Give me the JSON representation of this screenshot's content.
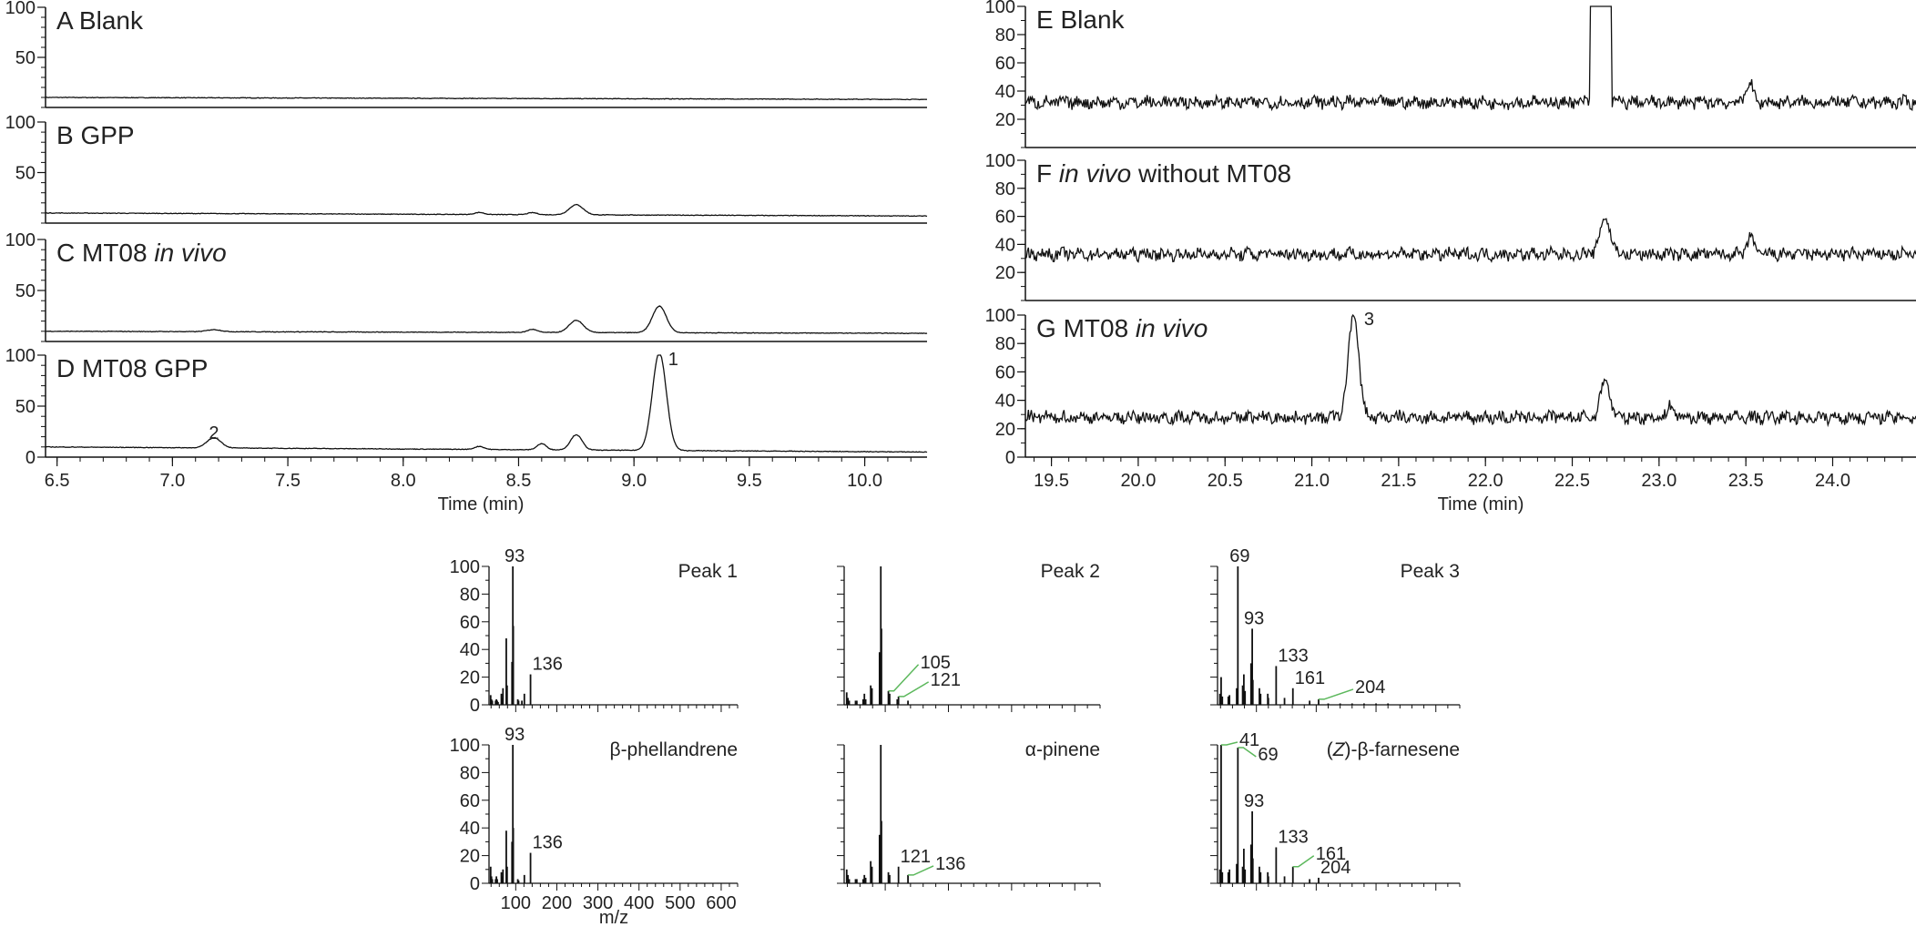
{
  "figure": {
    "gc_left_xlabel": "Time (min)",
    "gc_right_xlabel": "Time (min)",
    "ms_xlabel": "m/z"
  },
  "chart_data": [
    {
      "id": "A",
      "type": "line",
      "title_letter": "A",
      "title_text": "Blank",
      "title_italic": "",
      "xlim": [
        6.45,
        10.27
      ],
      "ylim": [
        0,
        100
      ],
      "yticks": [
        50,
        100
      ],
      "xticks": [],
      "xlabel": "",
      "baseline_start": 10,
      "baseline_end": 8,
      "peaks": []
    },
    {
      "id": "B",
      "type": "line",
      "title_letter": "B",
      "title_text": "GPP",
      "title_italic": "",
      "xlim": [
        6.45,
        10.27
      ],
      "ylim": [
        0,
        100
      ],
      "yticks": [
        50,
        100
      ],
      "xticks": [],
      "xlabel": "",
      "baseline_start": 10,
      "baseline_end": 7,
      "peaks": [
        [
          8.33,
          2,
          0.02
        ],
        [
          8.56,
          2,
          0.02
        ],
        [
          8.75,
          10,
          0.03
        ]
      ]
    },
    {
      "id": "C",
      "type": "line",
      "title_letter": "C",
      "title_text": "MT08",
      "title_italic": "in vivo",
      "xlim": [
        6.45,
        10.27
      ],
      "ylim": [
        0,
        100
      ],
      "yticks": [
        50,
        100
      ],
      "xticks": [],
      "xlabel": "",
      "baseline_start": 10,
      "baseline_end": 8,
      "peaks": [
        [
          7.18,
          2,
          0.03
        ],
        [
          8.56,
          3,
          0.02
        ],
        [
          8.75,
          12,
          0.03
        ],
        [
          9.11,
          26,
          0.03
        ]
      ]
    },
    {
      "id": "D",
      "type": "line",
      "title_letter": "D",
      "title_text": "MT08 GPP",
      "title_italic": "",
      "xlim": [
        6.45,
        10.27
      ],
      "ylim": [
        0,
        100
      ],
      "yticks": [
        0,
        50,
        100
      ],
      "xticks": [
        "6.5",
        "7.0",
        "7.5",
        "8.0",
        "8.5",
        "9.0",
        "9.5",
        "10.0"
      ],
      "xlabel": "Time (min)",
      "baseline_start": 10,
      "baseline_end": 5,
      "peaks": [
        [
          7.18,
          10,
          0.03
        ],
        [
          8.33,
          3,
          0.02
        ],
        [
          8.6,
          6,
          0.02
        ],
        [
          8.75,
          15,
          0.025
        ],
        [
          9.11,
          96,
          0.03
        ]
      ],
      "peak_labels": [
        {
          "text": "2",
          "x": 7.18,
          "y": 18
        },
        {
          "text": "1",
          "x": 9.17,
          "y": 90
        }
      ]
    },
    {
      "id": "E",
      "type": "line",
      "title_letter": "E",
      "title_text": "Blank",
      "title_italic": "",
      "xlim": [
        19.35,
        24.48
      ],
      "ylim": [
        0,
        100
      ],
      "yticks": [
        20,
        40,
        60,
        80,
        100
      ],
      "xticks": [],
      "xlabel": "",
      "baseline_mean": 32,
      "noise": 4,
      "peaks": [
        [
          23.52,
          14,
          0.02
        ]
      ],
      "block": [
        22.6,
        22.73,
        100
      ]
    },
    {
      "id": "F",
      "type": "line",
      "title_letter": "F",
      "title_text": "without MT08",
      "title_italic": "in vivo",
      "xlim": [
        19.35,
        24.48
      ],
      "ylim": [
        0,
        100
      ],
      "yticks": [
        20,
        40,
        60,
        80,
        100
      ],
      "xticks": [],
      "xlabel": "",
      "baseline_mean": 33,
      "noise": 4,
      "peaks": [
        [
          22.69,
          26,
          0.03
        ],
        [
          23.53,
          12,
          0.02
        ]
      ]
    },
    {
      "id": "G",
      "type": "line",
      "title_letter": "G",
      "title_text": "MT08",
      "title_italic": "in vivo",
      "xlim": [
        19.35,
        24.48
      ],
      "ylim": [
        0,
        100
      ],
      "yticks": [
        0,
        20,
        40,
        60,
        80,
        100
      ],
      "xticks": [
        "19.5",
        "20.0",
        "20.5",
        "21.0",
        "21.5",
        "22.0",
        "22.5",
        "23.0",
        "23.5",
        "24.0"
      ],
      "xlabel": "Time (min)",
      "baseline_mean": 28,
      "noise": 4,
      "peaks": [
        [
          21.24,
          72,
          0.03
        ],
        [
          22.69,
          28,
          0.025
        ],
        [
          23.07,
          8,
          0.02
        ]
      ],
      "peak_labels": [
        {
          "text": "3",
          "x": 21.33,
          "y": 93
        }
      ]
    },
    {
      "id": "peak1",
      "type": "bar",
      "title": "Peak 1",
      "xlim": [
        35,
        640
      ],
      "ylim": [
        0,
        100
      ],
      "yticks": [
        0,
        20,
        40,
        60,
        80,
        100
      ],
      "xticks": [],
      "x": [
        39,
        41,
        43,
        51,
        53,
        55,
        57,
        65,
        67,
        69,
        77,
        79,
        91,
        92,
        93,
        94,
        105,
        107,
        115,
        121,
        136
      ],
      "values": [
        7,
        4,
        3,
        3,
        4,
        3,
        2,
        8,
        5,
        12,
        48,
        14,
        31,
        4,
        100,
        57,
        4,
        3,
        3,
        8,
        22
      ],
      "labels": [
        {
          "text": "93",
          "mz": 93,
          "y": 100
        },
        {
          "text": "136",
          "mz": 136,
          "y": 22
        }
      ]
    },
    {
      "id": "peak2",
      "type": "bar",
      "title": "Peak 2",
      "xlim": [
        35,
        440
      ],
      "ylim": [
        0,
        100
      ],
      "yticks": [],
      "xticks": [],
      "x": [
        39,
        41,
        43,
        53,
        55,
        65,
        67,
        69,
        77,
        79,
        91,
        92,
        93,
        94,
        105,
        107,
        119,
        121,
        136
      ],
      "values": [
        9,
        5,
        3,
        3,
        3,
        4,
        8,
        4,
        14,
        12,
        38,
        8,
        100,
        55,
        10,
        8,
        4,
        6,
        3
      ],
      "labels": [
        {
          "text": "105",
          "mz": 105,
          "y": 10,
          "lx": 35,
          "ly": 31
        },
        {
          "text": "121",
          "mz": 121,
          "y": 6,
          "lx": 35,
          "ly": 18
        }
      ]
    },
    {
      "id": "peak3",
      "type": "bar",
      "title": "Peak 3",
      "xlim": [
        35,
        440
      ],
      "ylim": [
        0,
        100
      ],
      "yticks": [],
      "xticks": [],
      "x": [
        39,
        41,
        43,
        53,
        55,
        67,
        69,
        77,
        79,
        81,
        91,
        93,
        94,
        105,
        107,
        119,
        120,
        133,
        147,
        161,
        189,
        204,
        220,
        240,
        260,
        280,
        300,
        320
      ],
      "values": [
        8,
        20,
        6,
        6,
        7,
        12,
        100,
        14,
        22,
        10,
        30,
        55,
        18,
        12,
        8,
        8,
        5,
        28,
        5,
        12,
        3,
        4,
        1,
        1,
        1,
        1,
        1,
        1
      ],
      "labels": [
        {
          "text": "69",
          "mz": 69,
          "y": 100
        },
        {
          "text": "93",
          "mz": 93,
          "y": 55
        },
        {
          "text": "133",
          "mz": 133,
          "y": 28
        },
        {
          "text": "161",
          "mz": 161,
          "y": 12
        },
        {
          "text": "204",
          "mz": 204,
          "y": 4,
          "lx": 40,
          "ly": 13
        }
      ]
    },
    {
      "id": "bphell",
      "type": "bar",
      "title": "β-phellandrene",
      "xlim": [
        35,
        640
      ],
      "ylim": [
        0,
        100
      ],
      "yticks": [
        0,
        20,
        40,
        60,
        80,
        100
      ],
      "xticks": [
        "100",
        "200",
        "300",
        "400",
        "500",
        "600"
      ],
      "xticks_vals": [
        100,
        200,
        300,
        400,
        500,
        600
      ],
      "x": [
        39,
        41,
        43,
        51,
        53,
        55,
        65,
        67,
        69,
        77,
        79,
        91,
        92,
        93,
        94,
        105,
        107,
        121,
        136
      ],
      "values": [
        12,
        5,
        3,
        3,
        5,
        3,
        8,
        5,
        10,
        38,
        12,
        30,
        4,
        100,
        40,
        3,
        2,
        6,
        22
      ],
      "labels": [
        {
          "text": "93",
          "mz": 93,
          "y": 100
        },
        {
          "text": "136",
          "mz": 136,
          "y": 22
        }
      ]
    },
    {
      "id": "apinene",
      "type": "bar",
      "title": "α-pinene",
      "xlim": [
        35,
        440
      ],
      "ylim": [
        0,
        100
      ],
      "yticks": [],
      "xticks": [],
      "x": [
        39,
        41,
        43,
        53,
        55,
        65,
        67,
        69,
        77,
        79,
        91,
        92,
        93,
        94,
        105,
        107,
        121,
        136
      ],
      "values": [
        10,
        6,
        3,
        3,
        3,
        3,
        6,
        4,
        16,
        12,
        35,
        10,
        100,
        45,
        8,
        6,
        12,
        6
      ],
      "labels": [
        {
          "text": "121",
          "mz": 121,
          "y": 12
        },
        {
          "text": "136",
          "mz": 136,
          "y": 6,
          "lx": 30,
          "ly": 12
        }
      ]
    },
    {
      "id": "zbfarn",
      "type": "bar",
      "title": "(Z)-β-farnesene",
      "title_prefix": "(",
      "title_italic": "Z",
      "title_suffix": ")-β-farnesene",
      "xlim": [
        35,
        440
      ],
      "ylim": [
        0,
        100
      ],
      "yticks": [],
      "xticks": [],
      "x": [
        39,
        41,
        43,
        53,
        55,
        67,
        69,
        77,
        79,
        81,
        91,
        93,
        94,
        105,
        107,
        119,
        120,
        133,
        147,
        161,
        189,
        204
      ],
      "values": [
        10,
        100,
        8,
        8,
        10,
        14,
        98,
        12,
        25,
        10,
        28,
        52,
        18,
        12,
        8,
        8,
        5,
        26,
        5,
        12,
        3,
        4
      ],
      "labels": [
        {
          "text": "41",
          "mz": 41,
          "y": 100,
          "lx": 20,
          "ly": 5
        },
        {
          "text": "69",
          "mz": 69,
          "y": 98,
          "lx": 22,
          "ly": -8
        },
        {
          "text": "93",
          "mz": 93,
          "y": 52
        },
        {
          "text": "133",
          "mz": 133,
          "y": 26
        },
        {
          "text": "161",
          "mz": 161,
          "y": 12,
          "lx": 25,
          "ly": 14
        },
        {
          "text": "204",
          "mz": 204,
          "y": 4
        }
      ]
    }
  ]
}
